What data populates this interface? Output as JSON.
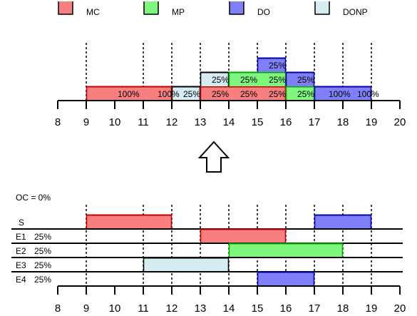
{
  "colors": {
    "MC": "#f77f7f",
    "MP": "#7ff77f",
    "DO": "#7f7ff7",
    "DONP": "#d7ebf3",
    "MC_border": "#c00000",
    "MP_border": "#00aa00",
    "DO_border": "#0000aa",
    "DONP_border": "#000000"
  },
  "legend": [
    {
      "key": "MC",
      "label": "MC"
    },
    {
      "key": "MP",
      "label": "MP"
    },
    {
      "key": "DO",
      "label": "DO"
    },
    {
      "key": "DONP",
      "label": "DONP"
    }
  ],
  "axis": {
    "ticks": [
      "8",
      "9",
      "10",
      "11",
      "12",
      "13",
      "14",
      "15",
      "16",
      "17",
      "18",
      "19",
      "20"
    ],
    "dotted_at": [
      9,
      11,
      12,
      13,
      14,
      15,
      16,
      17,
      18,
      19
    ]
  },
  "combined": [
    {
      "type": "MC",
      "start": 9,
      "end": 12,
      "level": 0
    },
    {
      "type": "DONP",
      "start": 12,
      "end": 13,
      "level": 0
    },
    {
      "type": "MC",
      "start": 13,
      "end": 16,
      "level": 0
    },
    {
      "type": "MP",
      "start": 16,
      "end": 17,
      "level": 0
    },
    {
      "type": "DO",
      "start": 17,
      "end": 19,
      "level": 0
    },
    {
      "type": "DONP",
      "start": 13,
      "end": 14,
      "level": 1
    },
    {
      "type": "MP",
      "start": 14,
      "end": 16,
      "level": 1
    },
    {
      "type": "DO",
      "start": 16,
      "end": 17,
      "level": 1
    },
    {
      "type": "DO",
      "start": 15,
      "end": 16,
      "level": 2
    }
  ],
  "combined_labels": [
    {
      "x": 10.1,
      "level": 0,
      "text": "100%"
    },
    {
      "x": 11.5,
      "level": 0,
      "text": "100%"
    },
    {
      "x": 12.4,
      "level": 0,
      "text": "25%"
    },
    {
      "x": 13.4,
      "level": 0,
      "text": "25%"
    },
    {
      "x": 14.4,
      "level": 0,
      "text": "25%"
    },
    {
      "x": 15.4,
      "level": 0,
      "text": "25%"
    },
    {
      "x": 16.4,
      "level": 0,
      "text": "25%"
    },
    {
      "x": 17.5,
      "level": 0,
      "text": "100%"
    },
    {
      "x": 18.5,
      "level": 0,
      "text": "100%"
    },
    {
      "x": 13.4,
      "level": 1,
      "text": "25%"
    },
    {
      "x": 14.4,
      "level": 1,
      "text": "25%"
    },
    {
      "x": 15.4,
      "level": 1,
      "text": "25%"
    },
    {
      "x": 16.4,
      "level": 1,
      "text": "25%"
    },
    {
      "x": 15.4,
      "level": 2,
      "text": "25%"
    }
  ],
  "oc_label": "OC = 0%",
  "rows": [
    {
      "name": "S",
      "pct": "",
      "bars": [
        {
          "type": "MC",
          "start": 9,
          "end": 12
        },
        {
          "type": "DO",
          "start": 17,
          "end": 19
        }
      ]
    },
    {
      "name": "E1",
      "pct": "25%",
      "bars": [
        {
          "type": "MC",
          "start": 13,
          "end": 16
        }
      ]
    },
    {
      "name": "E2",
      "pct": "25%",
      "bars": [
        {
          "type": "MP",
          "start": 14,
          "end": 18
        }
      ]
    },
    {
      "name": "E3",
      "pct": "25%",
      "bars": [
        {
          "type": "DONP",
          "start": 11,
          "end": 14
        }
      ]
    },
    {
      "name": "E4",
      "pct": "25%",
      "bars": [
        {
          "type": "DO",
          "start": 15,
          "end": 17
        }
      ]
    }
  ]
}
